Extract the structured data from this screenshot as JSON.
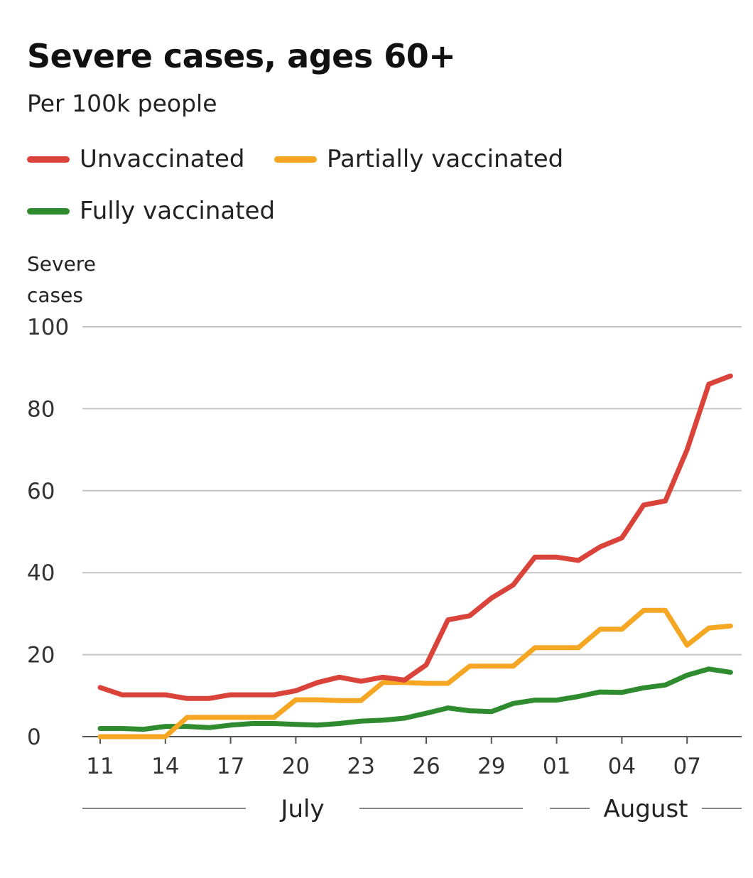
{
  "chart_data": {
    "type": "line",
    "title": "Severe cases, ages 60+",
    "subtitle": "Per 100k people",
    "ylabel": "Severe cases",
    "ylim": [
      0,
      100
    ],
    "yticks": [
      0,
      20,
      40,
      60,
      80,
      100
    ],
    "xtick_labels": [
      "11",
      "14",
      "17",
      "20",
      "23",
      "26",
      "29",
      "01",
      "04",
      "07"
    ],
    "months": [
      "July",
      "August"
    ],
    "grid": true,
    "legend": "top",
    "x": [
      "2021-07-11",
      "2021-07-12",
      "2021-07-13",
      "2021-07-14",
      "2021-07-15",
      "2021-07-16",
      "2021-07-17",
      "2021-07-18",
      "2021-07-19",
      "2021-07-20",
      "2021-07-21",
      "2021-07-22",
      "2021-07-23",
      "2021-07-24",
      "2021-07-25",
      "2021-07-26",
      "2021-07-27",
      "2021-07-28",
      "2021-07-29",
      "2021-07-30",
      "2021-07-31",
      "2021-08-01",
      "2021-08-02",
      "2021-08-03",
      "2021-08-04",
      "2021-08-05",
      "2021-08-06",
      "2021-08-07",
      "2021-08-08",
      "2021-08-09"
    ],
    "series": [
      {
        "name": "Unvaccinated",
        "color": "#d9433a",
        "values": [
          12,
          10.2,
          10.2,
          10.2,
          9.3,
          9.3,
          10.2,
          10.2,
          10.2,
          11.2,
          13.2,
          14.5,
          13.5,
          14.5,
          13.8,
          17.5,
          28.5,
          29.5,
          33.8,
          37,
          43.8,
          43.8,
          43,
          46.3,
          48.5,
          56.5,
          57.5,
          70,
          86,
          88
        ]
      },
      {
        "name": "Partially vaccinated",
        "color": "#f5a623",
        "values": [
          0,
          0,
          0,
          0,
          4.7,
          4.7,
          4.7,
          4.7,
          4.7,
          9,
          9,
          8.8,
          8.8,
          13.2,
          13.2,
          13,
          13,
          17.2,
          17.2,
          17.2,
          21.7,
          21.7,
          21.7,
          26.2,
          26.2,
          30.8,
          30.8,
          22.3,
          26.5,
          27
        ]
      },
      {
        "name": "Fully vaccinated",
        "color": "#2e8b2e",
        "values": [
          2,
          2,
          1.8,
          2.5,
          2.5,
          2.2,
          2.8,
          3.2,
          3.2,
          3,
          2.8,
          3.2,
          3.8,
          4,
          4.5,
          5.7,
          7,
          6.3,
          6.1,
          8.1,
          8.9,
          8.9,
          9.8,
          10.9,
          10.8,
          11.9,
          12.6,
          15,
          16.5,
          15.7
        ]
      }
    ]
  }
}
